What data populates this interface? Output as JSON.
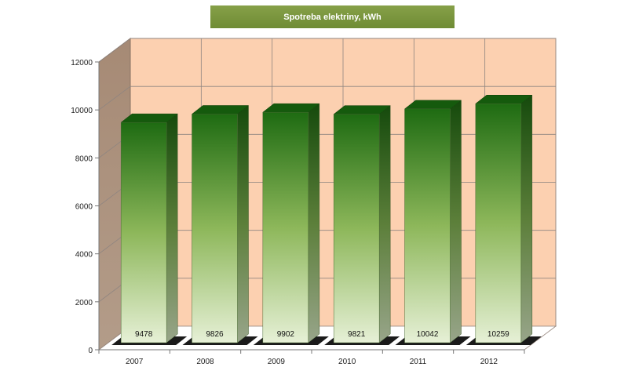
{
  "chart_data": {
    "type": "bar",
    "title": "Spotreba elektriny, kWh",
    "categories": [
      "2007",
      "2008",
      "2009",
      "2010",
      "2011",
      "2012"
    ],
    "values": [
      9478,
      9826,
      9902,
      9821,
      10042,
      10259
    ],
    "ylim": [
      0,
      12000
    ],
    "yticks": [
      0,
      2000,
      4000,
      6000,
      8000,
      10000,
      12000
    ],
    "xlabel": "",
    "ylabel": "",
    "grid": true,
    "style": "3d-column",
    "colors": {
      "bar_top": "#1e6b12",
      "bar_bottom": "#e6f0d6",
      "bar_side": "#1a4f10",
      "bar_cap": "#155a0d",
      "back_wall": "#fcd0b0",
      "side_wall": "#a98a73",
      "title_bg": "#7a9640"
    }
  }
}
